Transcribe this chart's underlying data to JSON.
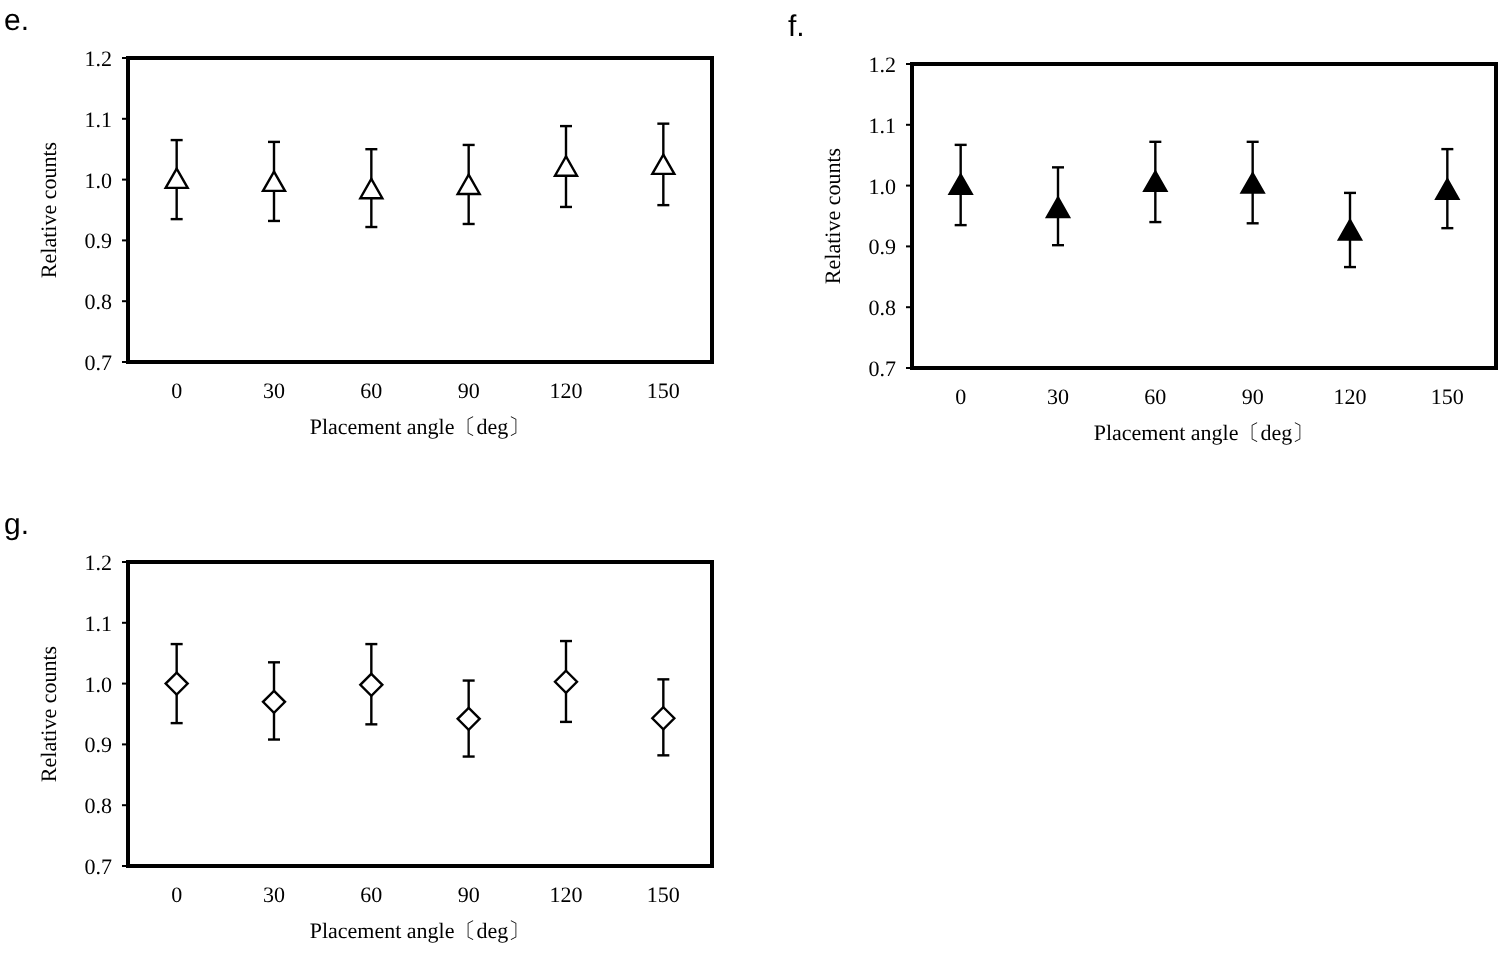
{
  "chart_data": [
    {
      "type": "scatter",
      "title": "e.",
      "xlabel": "Placement angle〔deg〕",
      "ylabel": "Relative counts",
      "categories": [
        "0",
        "30",
        "60",
        "90",
        "120",
        "150"
      ],
      "ylim": [
        0.7,
        1.2
      ],
      "yticks": [
        {
          "value": 0.7,
          "label": "0.7"
        },
        {
          "value": 0.8,
          "label": "0.8"
        },
        {
          "value": 0.9,
          "label": "0.9"
        },
        {
          "value": 1.0,
          "label": "1.0"
        },
        {
          "value": 1.1,
          "label": "1.1"
        },
        {
          "value": 1.2,
          "label": "1.2"
        }
      ],
      "marker": "triangle",
      "grid": false,
      "series": [
        {
          "color": "#ffffff",
          "values": [
            1.0,
            0.995,
            0.983,
            0.99,
            1.02,
            1.023
          ],
          "errors": [
            [
              0.935,
              1.065
            ],
            [
              0.932,
              1.062
            ],
            [
              0.922,
              1.05
            ],
            [
              0.927,
              1.057
            ],
            [
              0.955,
              1.088
            ],
            [
              0.958,
              1.092
            ]
          ]
        }
      ]
    },
    {
      "type": "scatter",
      "title": "f.",
      "xlabel": "Placement angle〔deg〕",
      "ylabel": "Relative counts",
      "categories": [
        "0",
        "30",
        "60",
        "90",
        "120",
        "150"
      ],
      "ylim": [
        0.7,
        1.2
      ],
      "yticks": [
        {
          "value": 0.7,
          "label": "0.7"
        },
        {
          "value": 0.8,
          "label": "0.8"
        },
        {
          "value": 0.9,
          "label": "0.9"
        },
        {
          "value": 1.0,
          "label": "1.0"
        },
        {
          "value": 1.1,
          "label": "1.1"
        },
        {
          "value": 1.2,
          "label": "1.2"
        }
      ],
      "marker": "triangle",
      "grid": false,
      "series": [
        {
          "color": "#000000",
          "values": [
            1.0,
            0.962,
            1.005,
            1.002,
            0.925,
            0.992
          ],
          "errors": [
            [
              0.935,
              1.067
            ],
            [
              0.902,
              1.03
            ],
            [
              0.94,
              1.072
            ],
            [
              0.938,
              1.072
            ],
            [
              0.866,
              0.988
            ],
            [
              0.93,
              1.06
            ]
          ]
        }
      ]
    },
    {
      "type": "scatter",
      "title": "g.",
      "xlabel": "Placement angle〔deg〕",
      "ylabel": "Relative counts",
      "categories": [
        "0",
        "30",
        "60",
        "90",
        "120",
        "150"
      ],
      "ylim": [
        0.7,
        1.2
      ],
      "yticks": [
        {
          "value": 0.7,
          "label": "0.7"
        },
        {
          "value": 0.8,
          "label": "0.8"
        },
        {
          "value": 0.9,
          "label": "0.9"
        },
        {
          "value": 1.0,
          "label": "1.0"
        },
        {
          "value": 1.1,
          "label": "1.1"
        },
        {
          "value": 1.2,
          "label": "1.2"
        }
      ],
      "marker": "diamond",
      "grid": false,
      "series": [
        {
          "color": "#ffffff",
          "values": [
            1.0,
            0.97,
            0.998,
            0.942,
            1.003,
            0.943
          ],
          "errors": [
            [
              0.935,
              1.065
            ],
            [
              0.908,
              1.035
            ],
            [
              0.933,
              1.065
            ],
            [
              0.88,
              1.005
            ],
            [
              0.937,
              1.07
            ],
            [
              0.882,
              1.007
            ]
          ]
        }
      ]
    }
  ]
}
